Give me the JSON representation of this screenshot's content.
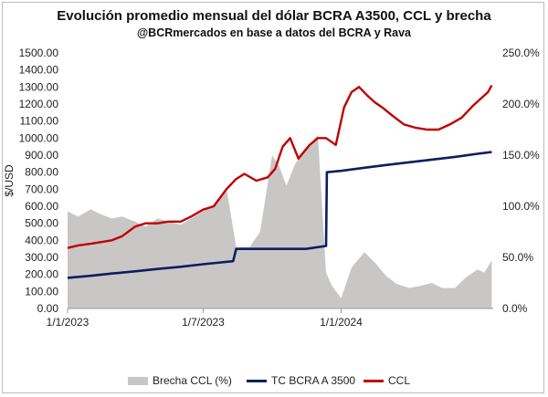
{
  "chart_data": {
    "type": "line",
    "title": "Evolución promedio mensual del dólar BCRA A3500, CCL y brecha",
    "subtitle": "@BCRmercados en base a datos del BCRA y Rava",
    "ylabel_left": "$/USD",
    "left_ticks": [
      "0.00",
      "100.00",
      "200.00",
      "300.00",
      "400.00",
      "500.00",
      "600.00",
      "700.00",
      "800.00",
      "900.00",
      "1000.00",
      "1100.00",
      "1200.00",
      "1300.00",
      "1400.00",
      "1500.00"
    ],
    "right_ticks": [
      "0.0%",
      "50.0%",
      "100.0%",
      "150.0%",
      "200.0%",
      "250.0%"
    ],
    "x_ticks": [
      "1/1/2023",
      "1/7/2023",
      "1/1/2024"
    ],
    "ylim_left": [
      0,
      1500
    ],
    "ylim_right": [
      0,
      250
    ],
    "grid": false,
    "legend_position": "bottom",
    "series": [
      {
        "name": "Brecha CCL (%)",
        "type": "area",
        "axis": "right",
        "color": "#c9c6c6",
        "x": [
          "2023-01-01",
          "2023-01-15",
          "2023-02-01",
          "2023-02-15",
          "2023-03-01",
          "2023-03-15",
          "2023-04-01",
          "2023-04-15",
          "2023-05-01",
          "2023-05-15",
          "2023-06-01",
          "2023-06-15",
          "2023-07-01",
          "2023-07-15",
          "2023-08-01",
          "2023-08-14",
          "2023-09-01",
          "2023-09-15",
          "2023-10-01",
          "2023-10-10",
          "2023-10-20",
          "2023-11-01",
          "2023-11-15",
          "2023-12-01",
          "2023-12-12",
          "2023-12-20",
          "2024-01-01",
          "2024-01-15",
          "2024-02-01",
          "2024-02-15",
          "2024-03-01",
          "2024-03-15",
          "2024-04-01",
          "2024-04-15",
          "2024-05-01",
          "2024-05-15",
          "2024-06-01",
          "2024-06-15",
          "2024-07-01",
          "2024-07-10",
          "2024-07-20"
        ],
        "values": [
          95,
          90,
          97,
          92,
          88,
          90,
          85,
          80,
          88,
          85,
          82,
          88,
          95,
          100,
          118,
          60,
          60,
          75,
          150,
          140,
          120,
          142,
          155,
          170,
          35,
          22,
          10,
          40,
          55,
          45,
          32,
          24,
          20,
          22,
          25,
          20,
          20,
          30,
          38,
          35,
          47
        ]
      },
      {
        "name": "TC BCRA A 3500",
        "type": "line",
        "axis": "left",
        "color": "#0b1f5c",
        "x": [
          "2023-01-01",
          "2023-02-01",
          "2023-03-01",
          "2023-04-01",
          "2023-05-01",
          "2023-06-01",
          "2023-07-01",
          "2023-08-10",
          "2023-08-14",
          "2023-09-01",
          "2023-10-01",
          "2023-11-15",
          "2023-12-12",
          "2023-12-13",
          "2024-01-01",
          "2024-02-01",
          "2024-03-01",
          "2024-04-01",
          "2024-05-01",
          "2024-06-01",
          "2024-07-01",
          "2024-07-20"
        ],
        "values": [
          180,
          192,
          205,
          218,
          232,
          245,
          260,
          278,
          350,
          350,
          350,
          350,
          367,
          800,
          808,
          826,
          842,
          858,
          874,
          890,
          908,
          918
        ]
      },
      {
        "name": "CCL",
        "type": "line",
        "axis": "left",
        "color": "#c00000",
        "x": [
          "2023-01-01",
          "2023-01-15",
          "2023-02-01",
          "2023-02-15",
          "2023-03-01",
          "2023-03-15",
          "2023-04-01",
          "2023-04-15",
          "2023-05-01",
          "2023-05-15",
          "2023-06-01",
          "2023-06-15",
          "2023-07-01",
          "2023-07-15",
          "2023-08-01",
          "2023-08-14",
          "2023-08-25",
          "2023-09-10",
          "2023-09-25",
          "2023-10-05",
          "2023-10-15",
          "2023-10-25",
          "2023-11-05",
          "2023-11-20",
          "2023-12-01",
          "2023-12-12",
          "2023-12-25",
          "2024-01-05",
          "2024-01-15",
          "2024-01-25",
          "2024-02-05",
          "2024-02-15",
          "2024-02-25",
          "2024-03-10",
          "2024-03-25",
          "2024-04-10",
          "2024-04-25",
          "2024-05-10",
          "2024-05-25",
          "2024-06-10",
          "2024-06-25",
          "2024-07-05",
          "2024-07-15",
          "2024-07-20"
        ],
        "values": [
          355,
          370,
          380,
          390,
          400,
          425,
          480,
          500,
          500,
          510,
          510,
          540,
          580,
          600,
          700,
          760,
          790,
          750,
          770,
          820,
          950,
          1000,
          880,
          960,
          1000,
          1000,
          960,
          1180,
          1270,
          1300,
          1250,
          1210,
          1180,
          1130,
          1080,
          1060,
          1050,
          1050,
          1080,
          1120,
          1190,
          1230,
          1270,
          1310
        ]
      }
    ]
  }
}
